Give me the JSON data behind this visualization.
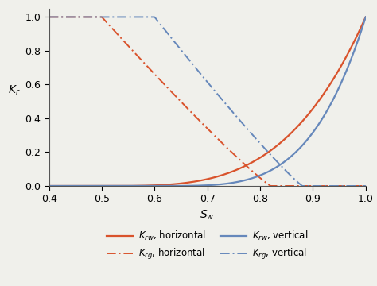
{
  "xlim": [
    0.4,
    1.0
  ],
  "ylim": [
    0.0,
    1.05
  ],
  "xticks": [
    0.4,
    0.5,
    0.6,
    0.7,
    0.8,
    0.9,
    1.0
  ],
  "yticks": [
    0.0,
    0.2,
    0.4,
    0.6,
    0.8,
    1.0
  ],
  "xlabel": "$S_w$",
  "ylabel": "$K_r$",
  "color_red": "#d9532c",
  "color_blue": "#6688bb",
  "krw_h": {
    "Swi": 0.5,
    "Swr": 1.0,
    "n": 3.5
  },
  "krg_h": {
    "Swi": 0.5,
    "Sgr": 0.82,
    "n": 1.1
  },
  "krw_v": {
    "Swi": 0.6,
    "Swr": 1.0,
    "n": 4.0
  },
  "krg_v": {
    "Swi": 0.6,
    "Sgr": 0.88,
    "n": 1.1
  },
  "legend_labels": [
    "$K_{rw}$, horizontal",
    "$K_{rg}$, horizontal",
    "$K_{rw}$, vertical",
    "$K_{rg}$, vertical"
  ],
  "figsize": [
    4.74,
    3.6
  ],
  "dpi": 100,
  "bg_color": "#f5f5f0"
}
